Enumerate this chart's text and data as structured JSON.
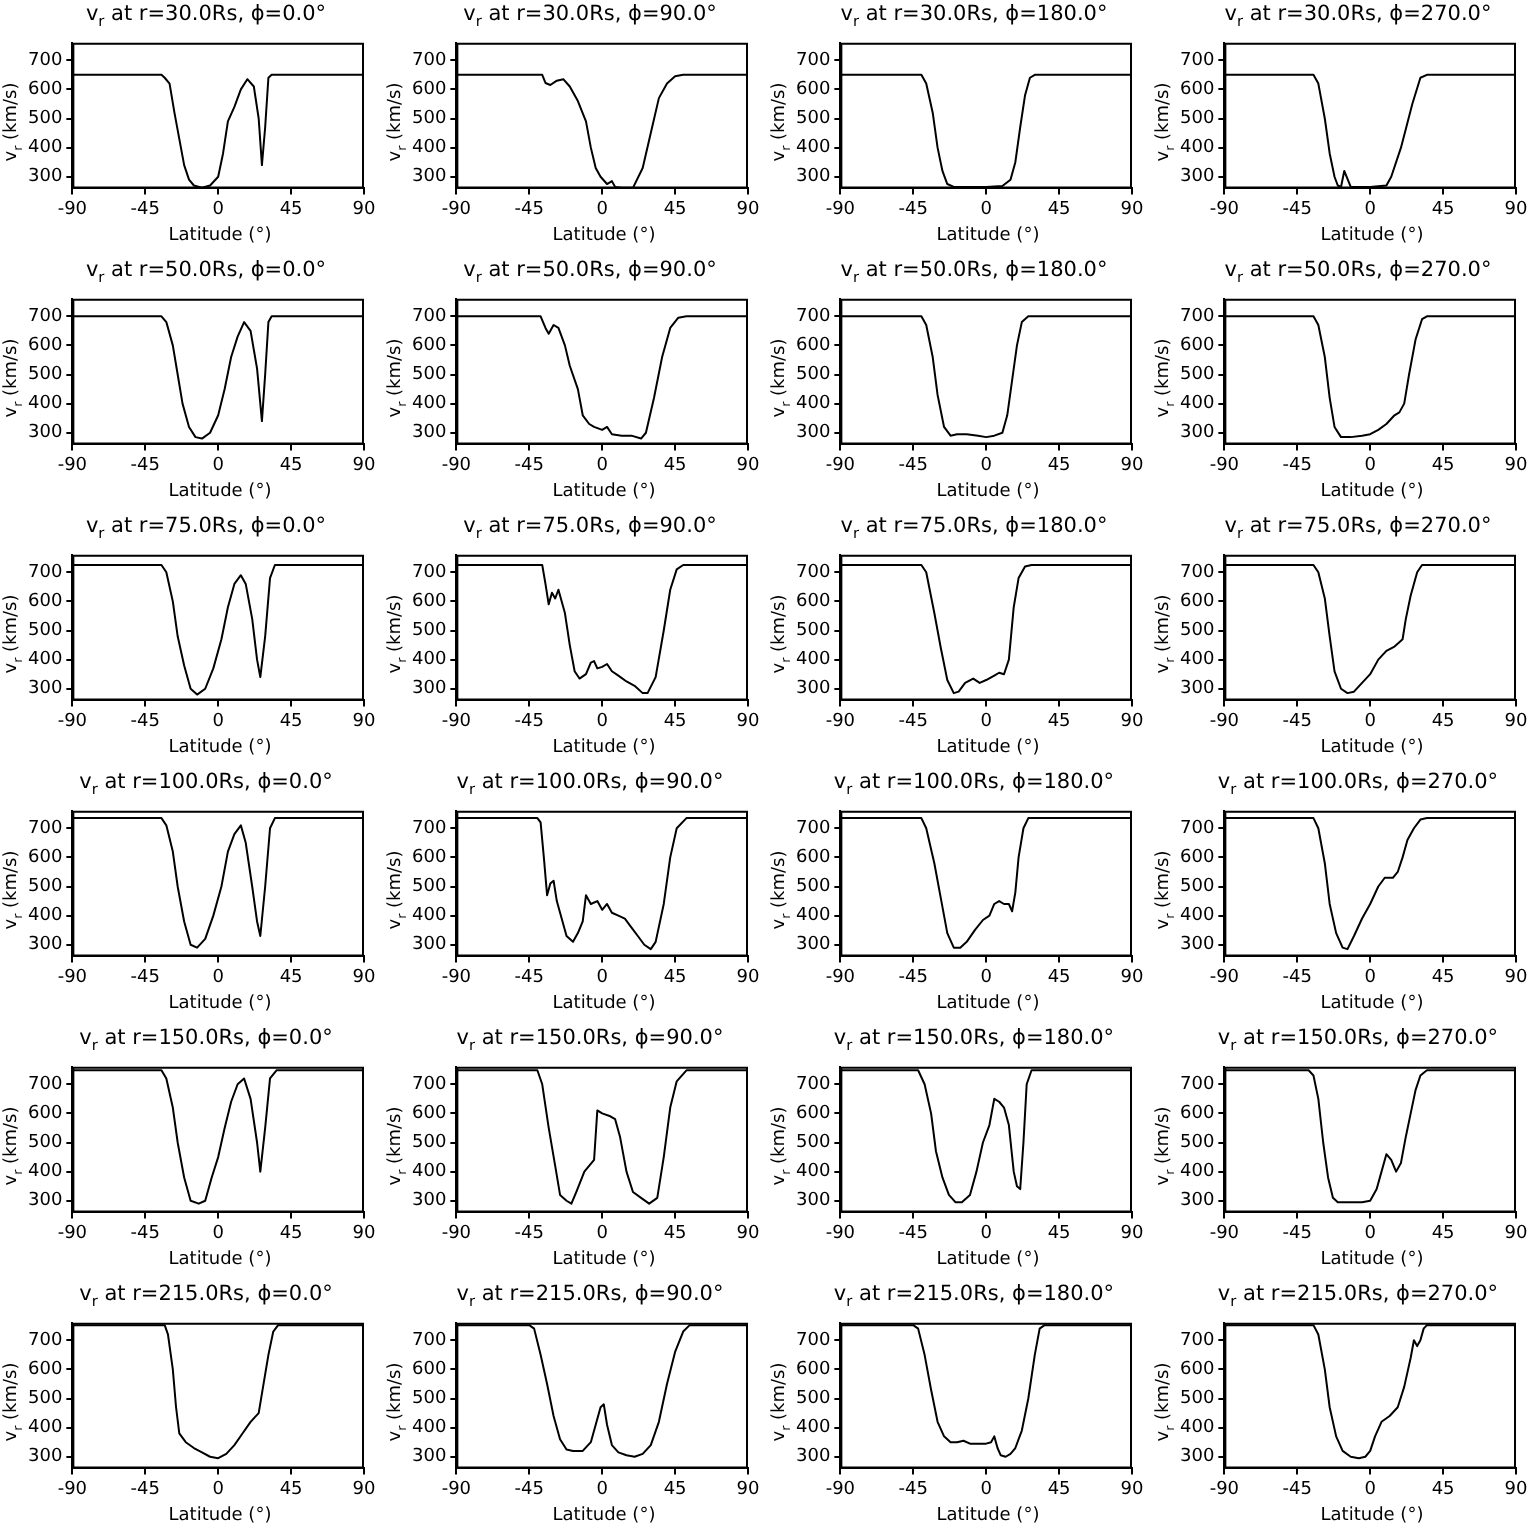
{
  "chart_data": [
    {
      "type": "line",
      "title": "v$_{r}$ at r=30.0Rs, ϕ=0.0°",
      "xlabel": "Latitude (°)",
      "ylabel": "v$_{r}$ (km/s)",
      "xlim": [
        -90,
        90
      ],
      "xticks": [
        -90,
        -45,
        0,
        45,
        90
      ],
      "ylim": [
        260,
        760
      ],
      "yticks": [
        300,
        400,
        500,
        600,
        700
      ],
      "color": "#000000",
      "x": [
        -90,
        -35,
        -33,
        -30,
        -27,
        -24,
        -21,
        -18,
        -15,
        -10,
        -5,
        0,
        3,
        6,
        10,
        14,
        18,
        22,
        25,
        27,
        29,
        31,
        33,
        90
      ],
      "values": [
        650,
        650,
        640,
        620,
        520,
        430,
        340,
        290,
        270,
        262,
        270,
        300,
        380,
        490,
        540,
        600,
        635,
        610,
        500,
        340,
        470,
        640,
        650,
        650
      ]
    },
    {
      "type": "line",
      "title": "v$_{r}$ at r=30.0Rs, ϕ=90.0°",
      "xlabel": "Latitude (°)",
      "ylabel": "v$_{r}$ (km/s)",
      "xlim": [
        -90,
        90
      ],
      "xticks": [
        -90,
        -45,
        0,
        45,
        90
      ],
      "ylim": [
        260,
        760
      ],
      "yticks": [
        300,
        400,
        500,
        600,
        700
      ],
      "color": "#000000",
      "x": [
        -90,
        -37,
        -35,
        -32,
        -28,
        -24,
        -20,
        -15,
        -10,
        -7,
        -4,
        -1,
        3,
        6,
        8,
        12,
        19,
        25,
        30,
        35,
        40,
        45,
        50,
        90
      ],
      "values": [
        650,
        650,
        622,
        615,
        630,
        635,
        610,
        560,
        490,
        400,
        330,
        300,
        275,
        285,
        265,
        262,
        262,
        330,
        450,
        570,
        620,
        645,
        650,
        650
      ]
    },
    {
      "type": "line",
      "title": "v$_{r}$ at r=30.0Rs, ϕ=180.0°",
      "xlabel": "Latitude (°)",
      "ylabel": "v$_{r}$ (km/s)",
      "xlim": [
        -90,
        90
      ],
      "xticks": [
        -90,
        -45,
        0,
        45,
        90
      ],
      "ylim": [
        260,
        760
      ],
      "yticks": [
        300,
        400,
        500,
        600,
        700
      ],
      "color": "#000000",
      "x": [
        -90,
        -40,
        -37,
        -33,
        -30,
        -27,
        -24,
        -20,
        0,
        10,
        15,
        18,
        21,
        24,
        27,
        30,
        90
      ],
      "values": [
        650,
        650,
        620,
        520,
        400,
        320,
        275,
        265,
        265,
        268,
        290,
        350,
        470,
        580,
        640,
        650,
        650
      ]
    },
    {
      "type": "line",
      "title": "v$_{r}$ at r=30.0Rs, ϕ=270.0°",
      "xlabel": "Latitude (°)",
      "ylabel": "v$_{r}$ (km/s)",
      "xlim": [
        -90,
        90
      ],
      "xticks": [
        -90,
        -45,
        0,
        45,
        90
      ],
      "ylim": [
        260,
        760
      ],
      "yticks": [
        300,
        400,
        500,
        600,
        700
      ],
      "color": "#000000",
      "x": [
        -90,
        -35,
        -32,
        -28,
        -25,
        -22,
        -20,
        -18,
        -16,
        -12,
        0,
        10,
        13,
        19,
        26,
        31,
        35,
        90
      ],
      "values": [
        650,
        650,
        620,
        500,
        380,
        300,
        270,
        265,
        320,
        265,
        265,
        270,
        300,
        400,
        550,
        640,
        650,
        650
      ]
    },
    {
      "type": "line",
      "title": "v$_{r}$ at r=50.0Rs, ϕ=0.0°",
      "xlabel": "Latitude (°)",
      "ylabel": "v$_{r}$ (km/s)",
      "xlim": [
        -90,
        90
      ],
      "xticks": [
        -90,
        -45,
        0,
        45,
        90
      ],
      "ylim": [
        260,
        760
      ],
      "yticks": [
        300,
        400,
        500,
        600,
        700
      ],
      "color": "#000000",
      "x": [
        -90,
        -35,
        -32,
        -28,
        -25,
        -22,
        -18,
        -14,
        -10,
        -5,
        0,
        4,
        8,
        12,
        16,
        20,
        24,
        27,
        29,
        31,
        33,
        90
      ],
      "values": [
        700,
        700,
        680,
        600,
        500,
        400,
        320,
        285,
        280,
        300,
        360,
        450,
        560,
        630,
        680,
        650,
        520,
        340,
        500,
        680,
        700,
        700
      ]
    },
    {
      "type": "line",
      "title": "v$_{r}$ at r=50.0Rs, ϕ=90.0°",
      "xlabel": "Latitude (°)",
      "ylabel": "v$_{r}$ (km/s)",
      "xlim": [
        -90,
        90
      ],
      "xticks": [
        -90,
        -45,
        0,
        45,
        90
      ],
      "ylim": [
        260,
        760
      ],
      "yticks": [
        300,
        400,
        500,
        600,
        700
      ],
      "color": "#000000",
      "x": [
        -90,
        -38,
        -35,
        -33,
        -30,
        -27,
        -23,
        -20,
        -15,
        -12,
        -8,
        -5,
        0,
        3,
        6,
        12,
        18,
        24,
        27,
        32,
        37,
        42,
        47,
        52,
        90
      ],
      "values": [
        700,
        700,
        660,
        640,
        670,
        660,
        600,
        530,
        450,
        360,
        330,
        320,
        310,
        320,
        295,
        290,
        290,
        280,
        300,
        420,
        560,
        660,
        695,
        700,
        700
      ]
    },
    {
      "type": "line",
      "title": "v$_{r}$ at r=50.0Rs, ϕ=180.0°",
      "xlabel": "Latitude (°)",
      "ylabel": "v$_{r}$ (km/s)",
      "xlim": [
        -90,
        90
      ],
      "xticks": [
        -90,
        -45,
        0,
        45,
        90
      ],
      "ylim": [
        260,
        760
      ],
      "yticks": [
        300,
        400,
        500,
        600,
        700
      ],
      "color": "#000000",
      "x": [
        -90,
        -40,
        -37,
        -33,
        -30,
        -26,
        -22,
        -18,
        -12,
        -5,
        0,
        5,
        10,
        13,
        16,
        19,
        22,
        26,
        90
      ],
      "values": [
        700,
        700,
        670,
        560,
        430,
        320,
        290,
        295,
        295,
        290,
        285,
        290,
        300,
        360,
        480,
        600,
        680,
        700,
        700
      ]
    },
    {
      "type": "line",
      "title": "v$_{r}$ at r=50.0Rs, ϕ=270.0°",
      "xlabel": "Latitude (°)",
      "ylabel": "v$_{r}$ (km/s)",
      "xlim": [
        -90,
        90
      ],
      "xticks": [
        -90,
        -45,
        0,
        45,
        90
      ],
      "ylim": [
        260,
        760
      ],
      "yticks": [
        300,
        400,
        500,
        600,
        700
      ],
      "color": "#000000",
      "x": [
        -90,
        -35,
        -32,
        -28,
        -25,
        -22,
        -18,
        -12,
        -5,
        0,
        5,
        10,
        15,
        18,
        21,
        24,
        28,
        32,
        35,
        90
      ],
      "values": [
        700,
        700,
        670,
        560,
        420,
        320,
        285,
        285,
        290,
        295,
        310,
        330,
        360,
        370,
        400,
        500,
        620,
        690,
        700,
        700
      ]
    },
    {
      "type": "line",
      "title": "v$_{r}$ at r=75.0Rs, ϕ=0.0°",
      "xlabel": "Latitude (°)",
      "ylabel": "v$_{r}$ (km/s)",
      "xlim": [
        -90,
        90
      ],
      "xticks": [
        -90,
        -45,
        0,
        45,
        90
      ],
      "ylim": [
        260,
        760
      ],
      "yticks": [
        300,
        400,
        500,
        600,
        700
      ],
      "color": "#000000",
      "x": [
        -90,
        -35,
        -32,
        -28,
        -25,
        -21,
        -17,
        -13,
        -8,
        -3,
        2,
        6,
        10,
        14,
        17,
        21,
        24,
        26,
        29,
        32,
        35,
        90
      ],
      "values": [
        725,
        725,
        700,
        600,
        480,
        380,
        300,
        280,
        300,
        370,
        470,
        580,
        660,
        690,
        660,
        540,
        400,
        340,
        480,
        680,
        725,
        725
      ]
    },
    {
      "type": "line",
      "title": "v$_{r}$ at r=75.0Rs, ϕ=90.0°",
      "xlabel": "Latitude (°)",
      "ylabel": "v$_{r}$ (km/s)",
      "xlim": [
        -90,
        90
      ],
      "xticks": [
        -90,
        -45,
        0,
        45,
        90
      ],
      "ylim": [
        260,
        760
      ],
      "yticks": [
        300,
        400,
        500,
        600,
        700
      ],
      "color": "#000000",
      "x": [
        -90,
        -37,
        -35,
        -33,
        -31,
        -29,
        -27,
        -23,
        -20,
        -17,
        -14,
        -10,
        -7,
        -5,
        -3,
        0,
        3,
        6,
        10,
        15,
        20,
        25,
        28,
        33,
        38,
        42,
        46,
        50,
        90
      ],
      "values": [
        725,
        725,
        660,
        590,
        630,
        610,
        640,
        560,
        450,
        360,
        335,
        350,
        390,
        395,
        370,
        375,
        385,
        360,
        345,
        325,
        310,
        285,
        285,
        340,
        500,
        640,
        710,
        725,
        725
      ]
    },
    {
      "type": "line",
      "title": "v$_{r}$ at r=75.0Rs, ϕ=180.0°",
      "xlabel": "Latitude (°)",
      "ylabel": "v$_{r}$ (km/s)",
      "xlim": [
        -90,
        90
      ],
      "xticks": [
        -90,
        -45,
        0,
        45,
        90
      ],
      "ylim": [
        260,
        760
      ],
      "yticks": [
        300,
        400,
        500,
        600,
        700
      ],
      "color": "#000000",
      "x": [
        -90,
        -40,
        -37,
        -32,
        -28,
        -24,
        -20,
        -17,
        -13,
        -8,
        -4,
        0,
        5,
        8,
        11,
        14,
        17,
        20,
        24,
        28,
        90
      ],
      "values": [
        725,
        725,
        700,
        560,
        440,
        330,
        285,
        290,
        320,
        335,
        320,
        330,
        345,
        355,
        350,
        400,
        580,
        680,
        720,
        725,
        725
      ]
    },
    {
      "type": "line",
      "title": "v$_{r}$ at r=75.0Rs, ϕ=270.0°",
      "xlabel": "Latitude (°)",
      "ylabel": "v$_{r}$ (km/s)",
      "xlim": [
        -90,
        90
      ],
      "xticks": [
        -90,
        -45,
        0,
        45,
        90
      ],
      "ylim": [
        260,
        760
      ],
      "yticks": [
        300,
        400,
        500,
        600,
        700
      ],
      "color": "#000000",
      "x": [
        -90,
        -35,
        -32,
        -28,
        -25,
        -22,
        -18,
        -14,
        -10,
        -5,
        0,
        5,
        10,
        15,
        18,
        20,
        22,
        25,
        29,
        32,
        90
      ],
      "values": [
        725,
        725,
        700,
        610,
        480,
        360,
        300,
        285,
        290,
        320,
        350,
        400,
        430,
        445,
        460,
        470,
        540,
        620,
        700,
        725,
        725
      ]
    },
    {
      "type": "line",
      "title": "v$_{r}$ at r=100.0Rs, ϕ=0.0°",
      "xlabel": "Latitude (°)",
      "ylabel": "v$_{r}$ (km/s)",
      "xlim": [
        -90,
        90
      ],
      "xticks": [
        -90,
        -45,
        0,
        45,
        90
      ],
      "ylim": [
        260,
        760
      ],
      "yticks": [
        300,
        400,
        500,
        600,
        700
      ],
      "color": "#000000",
      "x": [
        -90,
        -35,
        -32,
        -28,
        -25,
        -21,
        -17,
        -13,
        -8,
        -3,
        2,
        6,
        10,
        14,
        17,
        21,
        24,
        26,
        29,
        32,
        35,
        90
      ],
      "values": [
        735,
        735,
        710,
        620,
        500,
        380,
        300,
        290,
        320,
        400,
        500,
        620,
        680,
        710,
        650,
        500,
        380,
        330,
        500,
        700,
        735,
        735
      ]
    },
    {
      "type": "line",
      "title": "v$_{r}$ at r=100.0Rs, ϕ=90.0°",
      "xlabel": "Latitude (°)",
      "ylabel": "v$_{r}$ (km/s)",
      "xlim": [
        -90,
        90
      ],
      "xticks": [
        -90,
        -45,
        0,
        45,
        90
      ],
      "ylim": [
        260,
        760
      ],
      "yticks": [
        300,
        400,
        500,
        600,
        700
      ],
      "color": "#000000",
      "x": [
        -90,
        -40,
        -38,
        -36,
        -34,
        -32,
        -30,
        -28,
        -25,
        -22,
        -18,
        -15,
        -12,
        -10,
        -7,
        -3,
        0,
        3,
        6,
        10,
        14,
        18,
        22,
        26,
        30,
        33,
        38,
        42,
        46,
        52,
        90
      ],
      "values": [
        735,
        735,
        720,
        600,
        470,
        510,
        520,
        450,
        390,
        330,
        310,
        340,
        380,
        470,
        440,
        450,
        420,
        440,
        410,
        400,
        390,
        360,
        330,
        300,
        285,
        310,
        440,
        600,
        700,
        735,
        735
      ]
    },
    {
      "type": "line",
      "title": "v$_{r}$ at r=100.0Rs, ϕ=180.0°",
      "xlabel": "Latitude (°)",
      "ylabel": "v$_{r}$ (km/s)",
      "xlim": [
        -90,
        90
      ],
      "xticks": [
        -90,
        -45,
        0,
        45,
        90
      ],
      "ylim": [
        260,
        760
      ],
      "yticks": [
        300,
        400,
        500,
        600,
        700
      ],
      "color": "#000000",
      "x": [
        -90,
        -40,
        -37,
        -32,
        -28,
        -24,
        -20,
        -16,
        -12,
        -7,
        -2,
        2,
        5,
        8,
        11,
        14,
        16,
        18,
        20,
        23,
        26,
        90
      ],
      "values": [
        735,
        735,
        700,
        580,
        460,
        340,
        290,
        290,
        310,
        350,
        385,
        400,
        440,
        450,
        440,
        440,
        415,
        480,
        600,
        700,
        735,
        735
      ]
    },
    {
      "type": "line",
      "title": "v$_{r}$ at r=100.0Rs, ϕ=270.0°",
      "xlabel": "Latitude (°)",
      "ylabel": "v$_{r}$ (km/s)",
      "xlim": [
        -90,
        90
      ],
      "xticks": [
        -90,
        -45,
        0,
        45,
        90
      ],
      "ylim": [
        260,
        760
      ],
      "yticks": [
        300,
        400,
        500,
        600,
        700
      ],
      "color": "#000000",
      "x": [
        -90,
        -35,
        -32,
        -28,
        -25,
        -21,
        -17,
        -14,
        -10,
        -5,
        0,
        5,
        9,
        14,
        17,
        20,
        23,
        27,
        31,
        35,
        90
      ],
      "values": [
        735,
        735,
        700,
        580,
        440,
        340,
        290,
        285,
        330,
        390,
        440,
        500,
        530,
        530,
        550,
        600,
        660,
        700,
        730,
        735,
        735
      ]
    },
    {
      "type": "line",
      "title": "v$_{r}$ at r=150.0Rs, ϕ=0.0°",
      "xlabel": "Latitude (°)",
      "ylabel": "v$_{r}$ (km/s)",
      "xlim": [
        -90,
        90
      ],
      "xticks": [
        -90,
        -45,
        0,
        45,
        90
      ],
      "ylim": [
        260,
        760
      ],
      "yticks": [
        300,
        400,
        500,
        600,
        700
      ],
      "color": "#000000",
      "x": [
        -90,
        -35,
        -32,
        -28,
        -25,
        -21,
        -17,
        -12,
        -8,
        -4,
        0,
        4,
        8,
        12,
        16,
        20,
        24,
        26,
        29,
        32,
        36,
        90
      ],
      "values": [
        748,
        748,
        720,
        620,
        500,
        380,
        300,
        290,
        300,
        380,
        450,
        550,
        640,
        700,
        720,
        650,
        500,
        400,
        550,
        720,
        748,
        748
      ]
    },
    {
      "type": "line",
      "title": "v$_{r}$ at r=150.0Rs, ϕ=90.0°",
      "xlabel": "Latitude (°)",
      "ylabel": "v$_{r}$ (km/s)",
      "xlim": [
        -90,
        90
      ],
      "xticks": [
        -90,
        -45,
        0,
        45,
        90
      ],
      "ylim": [
        260,
        760
      ],
      "yticks": [
        300,
        400,
        500,
        600,
        700
      ],
      "color": "#000000",
      "x": [
        -90,
        -40,
        -37,
        -33,
        -29,
        -26,
        -22,
        -19,
        -16,
        -11,
        -5,
        -3,
        0,
        5,
        8,
        11,
        15,
        19,
        24,
        29,
        34,
        38,
        42,
        46,
        52,
        90
      ],
      "values": [
        748,
        748,
        700,
        550,
        420,
        320,
        300,
        290,
        330,
        400,
        440,
        610,
        600,
        590,
        580,
        520,
        400,
        330,
        310,
        290,
        310,
        450,
        620,
        710,
        748,
        748
      ]
    },
    {
      "type": "line",
      "title": "v$_{r}$ at r=150.0Rs, ϕ=180.0°",
      "xlabel": "Latitude (°)",
      "ylabel": "v$_{r}$ (km/s)",
      "xlim": [
        -90,
        90
      ],
      "xticks": [
        -90,
        -45,
        0,
        45,
        90
      ],
      "ylim": [
        260,
        760
      ],
      "yticks": [
        300,
        400,
        500,
        600,
        700
      ],
      "color": "#000000",
      "x": [
        -90,
        -42,
        -38,
        -34,
        -31,
        -27,
        -23,
        -19,
        -15,
        -10,
        -6,
        -2,
        2,
        5,
        8,
        11,
        14,
        17,
        19,
        21,
        23,
        25,
        28,
        90
      ],
      "values": [
        748,
        748,
        700,
        600,
        470,
        380,
        320,
        295,
        295,
        320,
        400,
        500,
        560,
        650,
        640,
        620,
        560,
        400,
        350,
        340,
        500,
        700,
        748,
        748
      ]
    },
    {
      "type": "line",
      "title": "v$_{r}$ at r=150.0Rs, ϕ=270.0°",
      "xlabel": "Latitude (°)",
      "ylabel": "v$_{r}$ (km/s)",
      "xlim": [
        -90,
        90
      ],
      "xticks": [
        -90,
        -45,
        0,
        45,
        90
      ],
      "ylim": [
        260,
        760
      ],
      "yticks": [
        300,
        400,
        500,
        600,
        700
      ],
      "color": "#000000",
      "x": [
        -90,
        -38,
        -35,
        -32,
        -29,
        -26,
        -23,
        -20,
        -15,
        -10,
        -5,
        0,
        4,
        7,
        10,
        13,
        16,
        19,
        22,
        25,
        28,
        31,
        35,
        90
      ],
      "values": [
        748,
        748,
        730,
        650,
        500,
        380,
        310,
        295,
        295,
        295,
        295,
        300,
        340,
        400,
        460,
        440,
        400,
        430,
        520,
        600,
        680,
        730,
        748,
        748
      ]
    },
    {
      "type": "line",
      "title": "v$_{r}$ at r=215.0Rs, ϕ=0.0°",
      "xlabel": "Latitude (°)",
      "ylabel": "v$_{r}$ (km/s)",
      "xlim": [
        -90,
        90
      ],
      "xticks": [
        -90,
        -45,
        0,
        45,
        90
      ],
      "ylim": [
        260,
        760
      ],
      "yticks": [
        300,
        400,
        500,
        600,
        700
      ],
      "color": "#000000",
      "x": [
        -90,
        -33,
        -31,
        -28,
        -26,
        -24,
        -20,
        -15,
        -10,
        -5,
        0,
        5,
        10,
        15,
        20,
        25,
        28,
        31,
        34,
        37,
        90
      ],
      "values": [
        752,
        752,
        720,
        600,
        470,
        380,
        350,
        330,
        315,
        300,
        295,
        310,
        340,
        380,
        420,
        450,
        550,
        650,
        730,
        752,
        752
      ]
    },
    {
      "type": "line",
      "title": "v$_{r}$ at r=215.0Rs, ϕ=90.0°",
      "xlabel": "Latitude (°)",
      "ylabel": "v$_{r}$ (km/s)",
      "xlim": [
        -90,
        90
      ],
      "xticks": [
        -90,
        -45,
        0,
        45,
        90
      ],
      "ylim": [
        260,
        760
      ],
      "yticks": [
        300,
        400,
        500,
        600,
        700
      ],
      "color": "#000000",
      "x": [
        -90,
        -45,
        -42,
        -38,
        -34,
        -30,
        -26,
        -22,
        -18,
        -12,
        -7,
        -4,
        -1,
        1,
        3,
        6,
        10,
        15,
        20,
        25,
        30,
        35,
        40,
        45,
        50,
        54,
        90
      ],
      "values": [
        752,
        752,
        740,
        650,
        550,
        440,
        360,
        325,
        320,
        320,
        350,
        410,
        470,
        480,
        410,
        340,
        315,
        305,
        300,
        310,
        340,
        420,
        550,
        660,
        730,
        752,
        752
      ]
    },
    {
      "type": "line",
      "title": "v$_{r}$ at r=215.0Rs, ϕ=180.0°",
      "xlabel": "Latitude (°)",
      "ylabel": "v$_{r}$ (km/s)",
      "xlim": [
        -90,
        90
      ],
      "xticks": [
        -90,
        -45,
        0,
        45,
        90
      ],
      "ylim": [
        260,
        760
      ],
      "yticks": [
        300,
        400,
        500,
        600,
        700
      ],
      "color": "#000000",
      "x": [
        -90,
        -45,
        -42,
        -38,
        -34,
        -30,
        -26,
        -22,
        -18,
        -14,
        -10,
        -5,
        0,
        3,
        5,
        7,
        9,
        12,
        15,
        18,
        22,
        26,
        30,
        33,
        36,
        90
      ],
      "values": [
        752,
        752,
        740,
        650,
        530,
        420,
        370,
        350,
        350,
        355,
        345,
        345,
        345,
        350,
        370,
        330,
        305,
        300,
        310,
        330,
        390,
        500,
        650,
        740,
        752,
        752
      ]
    },
    {
      "type": "line",
      "title": "v$_{r}$ at r=215.0Rs, ϕ=270.0°",
      "xlabel": "Latitude (°)",
      "ylabel": "v$_{r}$ (km/s)",
      "xlim": [
        -90,
        90
      ],
      "xticks": [
        -90,
        -45,
        0,
        45,
        90
      ],
      "ylim": [
        260,
        760
      ],
      "yticks": [
        300,
        400,
        500,
        600,
        700
      ],
      "color": "#000000",
      "x": [
        -90,
        -35,
        -32,
        -28,
        -25,
        -21,
        -17,
        -12,
        -7,
        -3,
        0,
        3,
        7,
        12,
        17,
        21,
        25,
        27,
        29,
        31,
        33,
        35,
        90
      ],
      "values": [
        752,
        752,
        720,
        600,
        470,
        370,
        320,
        300,
        295,
        300,
        320,
        370,
        420,
        440,
        470,
        540,
        640,
        700,
        680,
        700,
        740,
        752,
        752
      ]
    }
  ]
}
